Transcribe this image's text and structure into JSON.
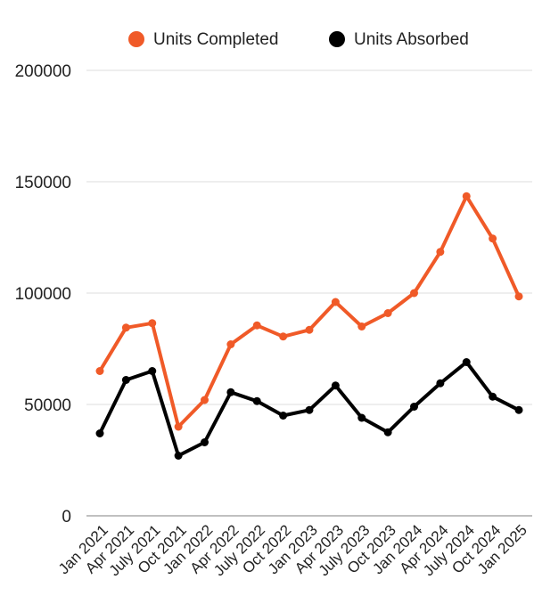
{
  "chart_data": {
    "type": "line",
    "categories": [
      "Jan 2021",
      "Apr 2021",
      "July 2021",
      "Oct 2021",
      "Jan 2022",
      "Apr 2022",
      "July 2022",
      "Oct 2022",
      "Jan 2023",
      "Apr 2023",
      "July 2023",
      "Oct 2023",
      "Jan 2024",
      "Apr 2024",
      "July 2024",
      "Oct 2024",
      "Jan 2025"
    ],
    "series": [
      {
        "name": "Units Completed",
        "color": "#f05a28",
        "values": [
          65000,
          84500,
          86500,
          40000,
          52000,
          77000,
          85500,
          80500,
          83500,
          96000,
          85000,
          91000,
          100000,
          118500,
          143500,
          124500,
          98500
        ]
      },
      {
        "name": "Units Absorbed",
        "color": "#000000",
        "values": [
          37000,
          61000,
          65000,
          27000,
          33000,
          55500,
          51500,
          45000,
          47500,
          58500,
          44000,
          37500,
          49000,
          59500,
          69000,
          53500,
          47500
        ]
      }
    ],
    "yticks": [
      "0",
      "50000",
      "100000",
      "150000",
      "200000"
    ],
    "ylim": [
      0,
      200000
    ],
    "grid": true,
    "legend_position": "top"
  }
}
